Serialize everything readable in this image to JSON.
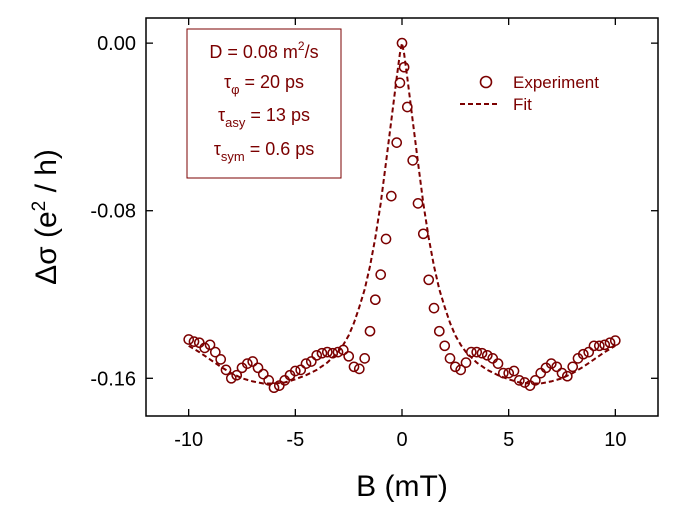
{
  "chart_data": {
    "type": "scatter",
    "xlabel": "B (mT)",
    "ylabel": "Δσ (e² / h)",
    "xlim": [
      -12,
      12
    ],
    "ylim": [
      -0.178,
      0.012
    ],
    "x_ticks": [
      -10,
      -5,
      0,
      5,
      10
    ],
    "x_tick_labels": [
      "-10",
      "-5",
      "0",
      "5",
      "10"
    ],
    "y_ticks": [
      0.0,
      -0.08,
      -0.16
    ],
    "y_tick_labels": [
      "0.00",
      "-0.08",
      "-0.16"
    ],
    "grid": false,
    "legend_position": "top-right",
    "colors": {
      "series": "#7b0000",
      "axes": "#000000"
    },
    "params_box": {
      "D": {
        "label": "D = 0.08 m",
        "sup": "2",
        "tail": "/s"
      },
      "tau_phi": {
        "symbol": "τ",
        "sub": "φ",
        "value": " = 20 ps"
      },
      "tau_asy": {
        "symbol": "τ",
        "sub": "asy",
        "value": " = 13 ps"
      },
      "tau_sym": {
        "symbol": "τ",
        "sub": "sym",
        "value": " = 0.6 ps"
      }
    },
    "series": [
      {
        "name": "Experiment",
        "style": "open-circle",
        "points": [
          [
            -10.0,
            -0.1415
          ],
          [
            -9.75,
            -0.1425
          ],
          [
            -9.5,
            -0.143
          ],
          [
            -9.25,
            -0.1455
          ],
          [
            -9.0,
            -0.144
          ],
          [
            -8.75,
            -0.1475
          ],
          [
            -8.5,
            -0.151
          ],
          [
            -8.25,
            -0.156
          ],
          [
            -8.0,
            -0.16
          ],
          [
            -7.75,
            -0.1585
          ],
          [
            -7.5,
            -0.155
          ],
          [
            -7.25,
            -0.153
          ],
          [
            -7.0,
            -0.152
          ],
          [
            -6.75,
            -0.155
          ],
          [
            -6.5,
            -0.158
          ],
          [
            -6.25,
            -0.161
          ],
          [
            -6.0,
            -0.1645
          ],
          [
            -5.75,
            -0.1635
          ],
          [
            -5.5,
            -0.161
          ],
          [
            -5.25,
            -0.1585
          ],
          [
            -5.0,
            -0.1565
          ],
          [
            -4.75,
            -0.156
          ],
          [
            -4.5,
            -0.153
          ],
          [
            -4.25,
            -0.152
          ],
          [
            -4.0,
            -0.149
          ],
          [
            -3.75,
            -0.148
          ],
          [
            -3.5,
            -0.1475
          ],
          [
            -3.25,
            -0.148
          ],
          [
            -3.0,
            -0.1475
          ],
          [
            -2.75,
            -0.1465
          ],
          [
            -2.5,
            -0.1495
          ],
          [
            -2.25,
            -0.1545
          ],
          [
            -2.0,
            -0.1555
          ],
          [
            -1.75,
            -0.1505
          ],
          [
            -1.5,
            -0.1375
          ],
          [
            -1.25,
            -0.1225
          ],
          [
            -1.0,
            -0.1105
          ],
          [
            -0.75,
            -0.0935
          ],
          [
            -0.5,
            -0.073
          ],
          [
            -0.25,
            -0.0475
          ],
          [
            -0.1,
            -0.019
          ],
          [
            0.0,
            0.0
          ],
          [
            0.1,
            -0.0115
          ],
          [
            0.25,
            -0.0305
          ],
          [
            0.5,
            -0.056
          ],
          [
            0.75,
            -0.0765
          ],
          [
            1.0,
            -0.091
          ],
          [
            1.25,
            -0.113
          ],
          [
            1.5,
            -0.1265
          ],
          [
            1.75,
            -0.1375
          ],
          [
            2.0,
            -0.1445
          ],
          [
            2.25,
            -0.1505
          ],
          [
            2.5,
            -0.1545
          ],
          [
            2.75,
            -0.156
          ],
          [
            3.0,
            -0.1525
          ],
          [
            3.25,
            -0.1475
          ],
          [
            3.5,
            -0.1475
          ],
          [
            3.75,
            -0.148
          ],
          [
            4.0,
            -0.149
          ],
          [
            4.25,
            -0.1505
          ],
          [
            4.5,
            -0.153
          ],
          [
            4.75,
            -0.1575
          ],
          [
            5.0,
            -0.1575
          ],
          [
            5.25,
            -0.1565
          ],
          [
            5.5,
            -0.161
          ],
          [
            5.75,
            -0.162
          ],
          [
            6.0,
            -0.1635
          ],
          [
            6.25,
            -0.161
          ],
          [
            6.5,
            -0.1575
          ],
          [
            6.75,
            -0.155
          ],
          [
            7.0,
            -0.153
          ],
          [
            7.25,
            -0.1545
          ],
          [
            7.5,
            -0.1575
          ],
          [
            7.75,
            -0.159
          ],
          [
            8.0,
            -0.1545
          ],
          [
            8.25,
            -0.1505
          ],
          [
            8.5,
            -0.1485
          ],
          [
            8.75,
            -0.1475
          ],
          [
            9.0,
            -0.1445
          ],
          [
            9.25,
            -0.1445
          ],
          [
            9.5,
            -0.144
          ],
          [
            9.75,
            -0.143
          ],
          [
            10.0,
            -0.142
          ]
        ]
      },
      {
        "name": "Fit",
        "style": "dashed-line",
        "points": [
          [
            -10.0,
            -0.1445
          ],
          [
            -9.5,
            -0.1475
          ],
          [
            -9.0,
            -0.151
          ],
          [
            -8.5,
            -0.1545
          ],
          [
            -8.0,
            -0.1575
          ],
          [
            -7.5,
            -0.16
          ],
          [
            -7.0,
            -0.1615
          ],
          [
            -6.5,
            -0.1625
          ],
          [
            -6.0,
            -0.1625
          ],
          [
            -5.5,
            -0.162
          ],
          [
            -5.0,
            -0.1605
          ],
          [
            -4.5,
            -0.1585
          ],
          [
            -4.0,
            -0.156
          ],
          [
            -3.5,
            -0.1525
          ],
          [
            -3.0,
            -0.1475
          ],
          [
            -2.75,
            -0.144
          ],
          [
            -2.5,
            -0.1395
          ],
          [
            -2.25,
            -0.1335
          ],
          [
            -2.0,
            -0.126
          ],
          [
            -1.75,
            -0.1175
          ],
          [
            -1.5,
            -0.1065
          ],
          [
            -1.25,
            -0.093
          ],
          [
            -1.0,
            -0.0765
          ],
          [
            -0.75,
            -0.057
          ],
          [
            -0.5,
            -0.037
          ],
          [
            -0.25,
            -0.0165
          ],
          [
            -0.1,
            -0.005
          ],
          [
            0.0,
            0.0
          ],
          [
            0.1,
            -0.005
          ],
          [
            0.25,
            -0.0165
          ],
          [
            0.5,
            -0.037
          ],
          [
            0.75,
            -0.057
          ],
          [
            1.0,
            -0.0765
          ],
          [
            1.25,
            -0.093
          ],
          [
            1.5,
            -0.1065
          ],
          [
            1.75,
            -0.1175
          ],
          [
            2.0,
            -0.126
          ],
          [
            2.25,
            -0.1335
          ],
          [
            2.5,
            -0.1395
          ],
          [
            2.75,
            -0.144
          ],
          [
            3.0,
            -0.1475
          ],
          [
            3.5,
            -0.1525
          ],
          [
            4.0,
            -0.156
          ],
          [
            4.5,
            -0.1585
          ],
          [
            5.0,
            -0.1605
          ],
          [
            5.5,
            -0.162
          ],
          [
            6.0,
            -0.1625
          ],
          [
            6.5,
            -0.1625
          ],
          [
            7.0,
            -0.1615
          ],
          [
            7.5,
            -0.16
          ],
          [
            8.0,
            -0.1575
          ],
          [
            8.5,
            -0.1545
          ],
          [
            9.0,
            -0.151
          ],
          [
            9.5,
            -0.1475
          ],
          [
            10.0,
            -0.1445
          ]
        ]
      }
    ]
  }
}
